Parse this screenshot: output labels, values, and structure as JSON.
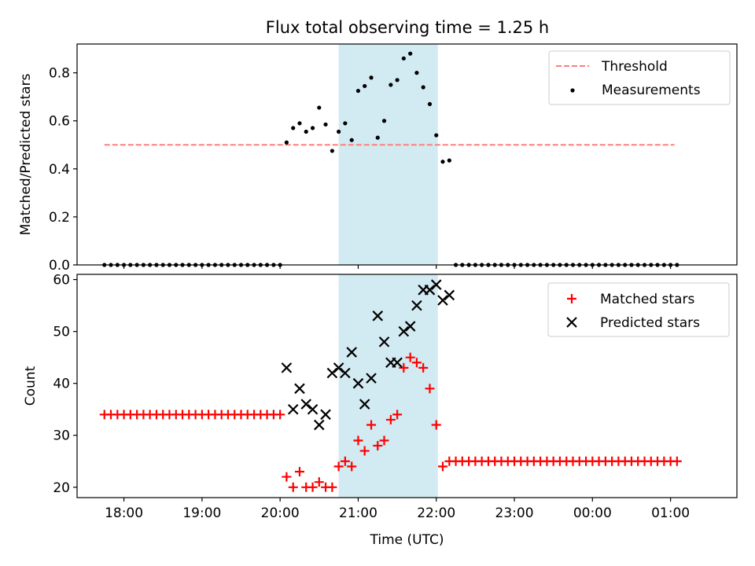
{
  "figure": {
    "title": "Flux total observing time = 1.25 h"
  },
  "chart_data": [
    {
      "type": "scatter",
      "panel": "top",
      "ylabel": "Matched/Predicted stars",
      "xlabel": "",
      "ylim": [
        0,
        0.92
      ],
      "yticks": [
        0.0,
        0.2,
        0.4,
        0.6,
        0.8
      ],
      "ytick_labels": [
        "0.0",
        "0.2",
        "0.4",
        "0.6",
        "0.8"
      ],
      "legend": {
        "placement": "top-right",
        "entries": [
          "Threshold",
          "Measurements"
        ]
      },
      "shaded_span": {
        "from": 20.75,
        "to": 22.02,
        "color": "#add8e6"
      },
      "threshold": {
        "name": "Threshold",
        "y": 0.5,
        "x_from": 17.75,
        "x_to": 25.05,
        "color": "#ff7f7f",
        "style": "dashed"
      },
      "series": [
        {
          "name": "Measurements",
          "color": "#000000",
          "marker": "dot",
          "x": [
            17.75,
            17.833,
            17.917,
            18.0,
            18.083,
            18.167,
            18.25,
            18.333,
            18.417,
            18.5,
            18.583,
            18.667,
            18.75,
            18.833,
            18.917,
            19.0,
            19.083,
            19.167,
            19.25,
            19.333,
            19.417,
            19.5,
            19.583,
            19.667,
            19.75,
            19.833,
            19.917,
            20.0,
            20.083,
            20.167,
            20.25,
            20.333,
            20.417,
            20.5,
            20.583,
            20.667,
            20.75,
            20.833,
            20.917,
            21.0,
            21.083,
            21.167,
            21.25,
            21.333,
            21.417,
            21.5,
            21.583,
            21.667,
            21.75,
            21.833,
            21.917,
            22.0,
            22.083,
            22.167,
            22.25,
            22.333,
            22.417,
            22.5,
            22.583,
            22.667,
            22.75,
            22.833,
            22.917,
            23.0,
            23.083,
            23.167,
            23.25,
            23.333,
            23.417,
            23.5,
            23.583,
            23.667,
            23.75,
            23.833,
            23.917,
            24.0,
            24.083,
            24.167,
            24.25,
            24.333,
            24.417,
            24.5,
            24.583,
            24.667,
            24.75,
            24.833,
            24.917,
            25.0,
            25.083
          ],
          "y": [
            0,
            0,
            0,
            0,
            0,
            0,
            0,
            0,
            0,
            0,
            0,
            0,
            0,
            0,
            0,
            0,
            0,
            0,
            0,
            0,
            0,
            0,
            0,
            0,
            0,
            0,
            0,
            0,
            0.51,
            0.57,
            0.59,
            0.555,
            0.57,
            0.655,
            0.585,
            0.475,
            0.555,
            0.59,
            0.52,
            0.725,
            0.745,
            0.78,
            0.53,
            0.6,
            0.75,
            0.77,
            0.86,
            0.88,
            0.8,
            0.74,
            0.67,
            0.54,
            0.43,
            0.435,
            0,
            0,
            0,
            0,
            0,
            0,
            0,
            0,
            0,
            0,
            0,
            0,
            0,
            0,
            0,
            0,
            0,
            0,
            0,
            0,
            0,
            0,
            0,
            0,
            0,
            0,
            0,
            0,
            0,
            0,
            0,
            0,
            0,
            0,
            0
          ]
        }
      ]
    },
    {
      "type": "scatter",
      "panel": "bottom",
      "ylabel": "Count",
      "xlabel": "Time (UTC)",
      "ylim": [
        18,
        61
      ],
      "xlim": [
        17.4,
        25.85
      ],
      "yticks": [
        20,
        30,
        40,
        50,
        60
      ],
      "ytick_labels": [
        "20",
        "30",
        "40",
        "50",
        "60"
      ],
      "xticks": [
        18,
        19,
        20,
        21,
        22,
        23,
        24,
        25
      ],
      "xtick_labels": [
        "18:00",
        "19:00",
        "20:00",
        "21:00",
        "22:00",
        "23:00",
        "00:00",
        "01:00"
      ],
      "legend": {
        "placement": "top-right",
        "entries": [
          "Matched stars",
          "Predicted stars"
        ]
      },
      "shaded_span": {
        "from": 20.75,
        "to": 22.02,
        "color": "#add8e6"
      },
      "series": [
        {
          "name": "Matched stars",
          "color": "#ff0000",
          "marker": "plus",
          "x": [
            17.75,
            17.833,
            17.917,
            18.0,
            18.083,
            18.167,
            18.25,
            18.333,
            18.417,
            18.5,
            18.583,
            18.667,
            18.75,
            18.833,
            18.917,
            19.0,
            19.083,
            19.167,
            19.25,
            19.333,
            19.417,
            19.5,
            19.583,
            19.667,
            19.75,
            19.833,
            19.917,
            20.0,
            20.083,
            20.167,
            20.25,
            20.333,
            20.417,
            20.5,
            20.583,
            20.667,
            20.75,
            20.833,
            20.917,
            21.0,
            21.083,
            21.167,
            21.25,
            21.333,
            21.417,
            21.5,
            21.583,
            21.667,
            21.75,
            21.833,
            21.917,
            22.0,
            22.083,
            22.167,
            22.25,
            22.333,
            22.417,
            22.5,
            22.583,
            22.667,
            22.75,
            22.833,
            22.917,
            23.0,
            23.083,
            23.167,
            23.25,
            23.333,
            23.417,
            23.5,
            23.583,
            23.667,
            23.75,
            23.833,
            23.917,
            24.0,
            24.083,
            24.167,
            24.25,
            24.333,
            24.417,
            24.5,
            24.583,
            24.667,
            24.75,
            24.833,
            24.917,
            25.0,
            25.083
          ],
          "y": [
            34,
            34,
            34,
            34,
            34,
            34,
            34,
            34,
            34,
            34,
            34,
            34,
            34,
            34,
            34,
            34,
            34,
            34,
            34,
            34,
            34,
            34,
            34,
            34,
            34,
            34,
            34,
            34,
            22,
            20,
            23,
            20,
            20,
            21,
            20,
            20,
            24,
            25,
            24,
            29,
            27,
            32,
            28,
            29,
            33,
            34,
            43,
            45,
            44,
            43,
            39,
            32,
            24,
            25,
            25,
            25,
            25,
            25,
            25,
            25,
            25,
            25,
            25,
            25,
            25,
            25,
            25,
            25,
            25,
            25,
            25,
            25,
            25,
            25,
            25,
            25,
            25,
            25,
            25,
            25,
            25,
            25,
            25,
            25,
            25,
            25,
            25,
            25,
            25
          ]
        },
        {
          "name": "Predicted stars",
          "color": "#000000",
          "marker": "x",
          "x": [
            20.083,
            20.167,
            20.25,
            20.333,
            20.417,
            20.5,
            20.583,
            20.667,
            20.75,
            20.833,
            20.917,
            21.0,
            21.083,
            21.167,
            21.25,
            21.333,
            21.417,
            21.5,
            21.583,
            21.667,
            21.75,
            21.833,
            21.917,
            22.0,
            22.083,
            22.167
          ],
          "y": [
            43,
            35,
            39,
            36,
            35,
            32,
            34,
            42,
            43,
            42,
            46,
            40,
            36,
            41,
            53,
            48,
            44,
            44,
            50,
            51,
            55,
            58,
            58,
            59,
            56,
            57
          ]
        }
      ]
    }
  ]
}
